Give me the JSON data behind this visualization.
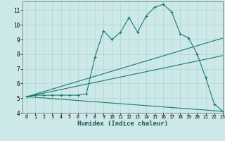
{
  "xlabel": "Humidex (Indice chaleur)",
  "background_color": "#cce8e8",
  "grid_color": "#b0d4d4",
  "line_color": "#1a7a6e",
  "xlim": [
    -0.5,
    23
  ],
  "ylim": [
    4,
    11.6
  ],
  "yticks": [
    4,
    5,
    6,
    7,
    8,
    9,
    10,
    11
  ],
  "xticks": [
    0,
    1,
    2,
    3,
    4,
    5,
    6,
    7,
    8,
    9,
    10,
    11,
    12,
    13,
    14,
    15,
    16,
    17,
    18,
    19,
    20,
    21,
    22,
    23
  ],
  "line1_x": [
    0,
    1,
    2,
    3,
    4,
    5,
    6,
    7,
    8,
    9,
    10,
    11,
    12,
    13,
    14,
    15,
    16,
    17,
    18,
    19,
    20,
    21,
    22,
    23
  ],
  "line1_y": [
    5.1,
    5.2,
    5.2,
    5.2,
    5.2,
    5.2,
    5.2,
    5.3,
    7.8,
    9.6,
    9.0,
    9.5,
    10.5,
    9.5,
    10.6,
    11.2,
    11.4,
    10.9,
    9.4,
    9.1,
    8.0,
    6.4,
    4.6,
    4.1
  ],
  "line2_x": [
    0,
    23
  ],
  "line2_y": [
    5.1,
    9.1
  ],
  "line3_x": [
    0,
    23
  ],
  "line3_y": [
    5.1,
    7.9
  ],
  "line4_x": [
    0,
    23
  ],
  "line4_y": [
    5.1,
    4.1
  ],
  "marker": "+"
}
